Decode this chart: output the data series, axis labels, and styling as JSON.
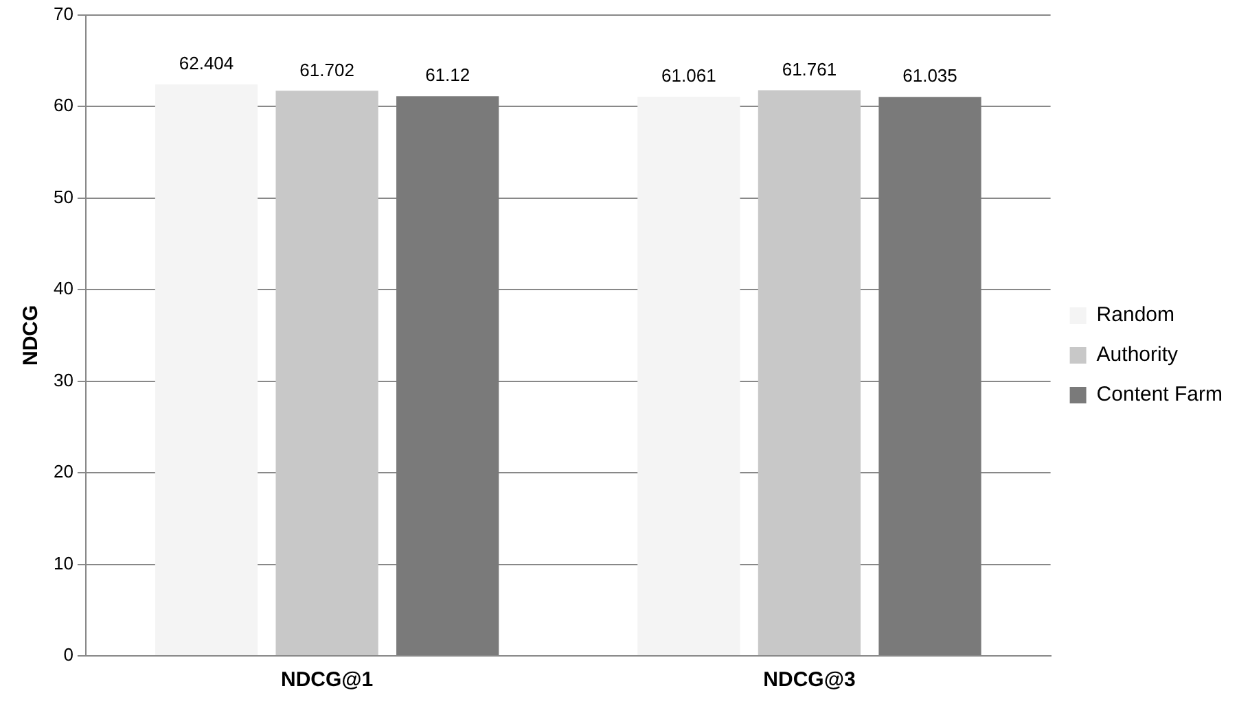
{
  "chart_data": {
    "type": "bar",
    "ylabel": "NDCG",
    "categories": [
      "NDCG@1",
      "NDCG@3"
    ],
    "series": [
      {
        "name": "Random",
        "color": "#f4f4f4",
        "values": [
          62.404,
          61.061
        ]
      },
      {
        "name": "Authority",
        "color": "#c8c8c8",
        "values": [
          61.702,
          61.761
        ]
      },
      {
        "name": "Content Farm",
        "color": "#7a7a7a",
        "values": [
          61.12,
          61.035
        ]
      }
    ],
    "ylim": [
      0,
      70
    ],
    "yticks": [
      0,
      10,
      20,
      30,
      40,
      50,
      60,
      70
    ],
    "grid": "y",
    "legend": "right",
    "data_labels": true
  }
}
